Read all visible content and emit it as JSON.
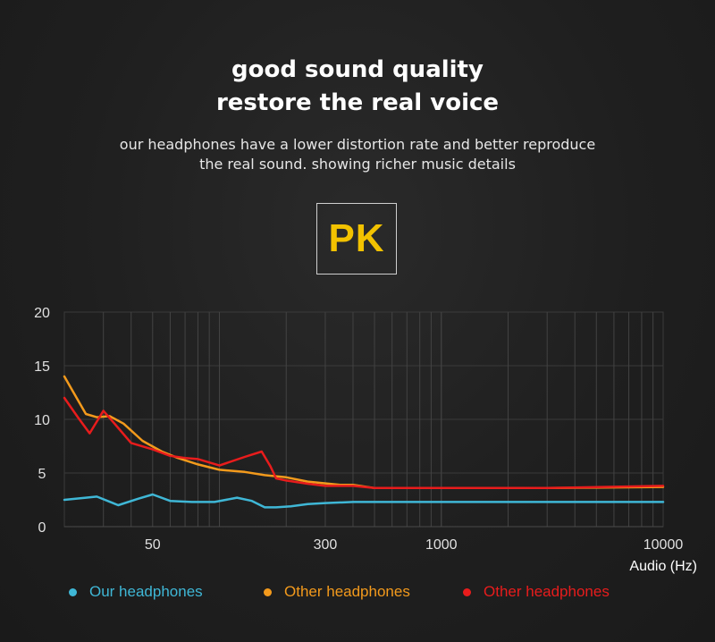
{
  "header": {
    "line1": "good sound quality",
    "line2": "restore the real voice",
    "sub1": "our headphones have a lower distortion rate and better reproduce",
    "sub2": "the real sound. showing richer music details",
    "badge": "PK",
    "badge_color": "#f2c200"
  },
  "chart_data": {
    "type": "line",
    "xscale": "log",
    "xlabel": "Audio (Hz)",
    "ylabel": "",
    "xlim": [
      20,
      10000
    ],
    "ylim": [
      0,
      20
    ],
    "xticks": [
      50,
      300,
      1000,
      10000
    ],
    "yticks": [
      0,
      5,
      10,
      15,
      20
    ],
    "grid": true,
    "legend_position": "bottom",
    "series": [
      {
        "name": "Our headphones",
        "color": "#3fb7d6",
        "x": [
          20,
          25,
          28,
          35,
          43,
          50,
          60,
          75,
          95,
          120,
          140,
          160,
          180,
          210,
          250,
          300,
          400,
          500,
          700,
          1000,
          3000,
          10000
        ],
        "y": [
          2.5,
          2.7,
          2.8,
          2.0,
          2.6,
          3.0,
          2.4,
          2.3,
          2.3,
          2.7,
          2.4,
          1.8,
          1.8,
          1.9,
          2.1,
          2.2,
          2.3,
          2.3,
          2.3,
          2.3,
          2.3,
          2.3
        ]
      },
      {
        "name": "Other headphones",
        "color": "#f39a1c",
        "x": [
          20,
          22,
          25,
          28,
          32,
          37,
          45,
          55,
          65,
          80,
          100,
          130,
          160,
          200,
          250,
          350,
          400,
          500,
          1000,
          3000,
          10000
        ],
        "y": [
          14,
          12.5,
          10.5,
          10.2,
          10.3,
          9.6,
          8.0,
          7.0,
          6.4,
          5.8,
          5.3,
          5.1,
          4.8,
          4.6,
          4.2,
          3.9,
          3.9,
          3.6,
          3.6,
          3.6,
          3.7
        ]
      },
      {
        "name": "Other headphones",
        "color": "#e81c1c",
        "x": [
          20,
          23,
          26,
          30,
          34,
          40,
          50,
          60,
          70,
          80,
          100,
          130,
          155,
          170,
          180,
          200,
          250,
          300,
          400,
          500,
          1000,
          3000,
          10000
        ],
        "y": [
          12,
          10.2,
          8.7,
          10.8,
          9.5,
          7.8,
          7.2,
          6.6,
          6.4,
          6.3,
          5.7,
          6.5,
          7.0,
          5.6,
          4.5,
          4.3,
          4.0,
          3.8,
          3.8,
          3.6,
          3.6,
          3.6,
          3.8
        ]
      }
    ]
  }
}
